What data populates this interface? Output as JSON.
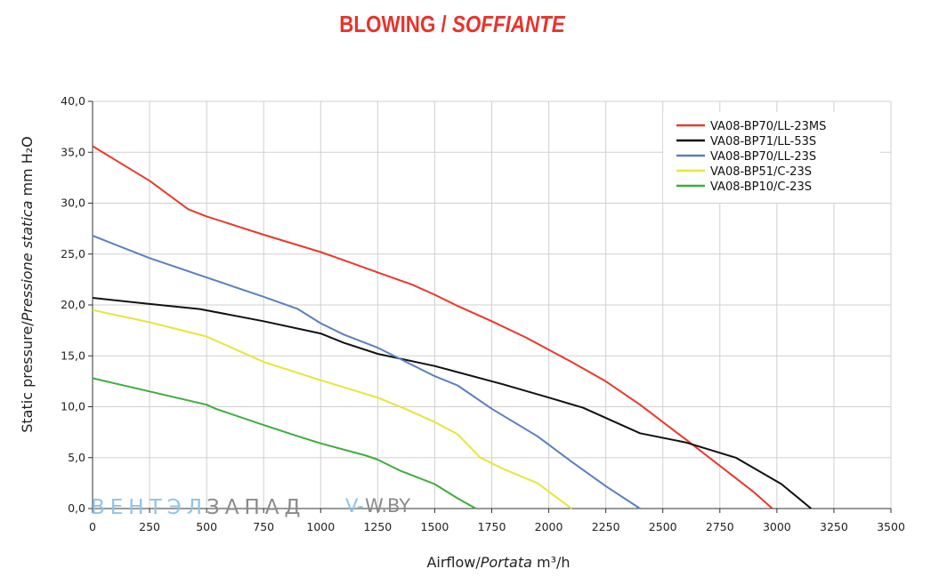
{
  "title": {
    "main": "BLOWING / ",
    "italic": "SOFFIANTE"
  },
  "watermark": {
    "part1": "ВЕНТЭЛ",
    "part2": "ЗАПАД",
    "part3": "V-",
    "part4": "W.BY"
  },
  "colors": {
    "title": "#e8332a",
    "grid": "#d0d0d0",
    "axis": "#333333"
  },
  "chart_data": {
    "type": "line",
    "xlabel": "Airflow / Portata m³/h",
    "xlabel_parts": {
      "en": "Airflow",
      "sep": "/",
      "it": "Portata",
      "unit": " m³/h"
    },
    "ylabel": "Static pressure / Pressione statica mm H₂O",
    "ylabel_parts": {
      "en": "Static pressure",
      "sep": "/",
      "it": "Pressione statica",
      "unit": " mm  H₂O"
    },
    "xlim": [
      0,
      3500
    ],
    "ylim": [
      0,
      40
    ],
    "x_ticks": [
      "0",
      "250",
      "500",
      "750",
      "1000",
      "1250",
      "1500",
      "1750",
      "2000",
      "2250",
      "2500",
      "2750",
      "3000",
      "3250",
      "3500"
    ],
    "y_ticks": [
      "0,0",
      "5,0",
      "10,0",
      "15,0",
      "20,0",
      "25,0",
      "30,0",
      "35,0",
      "40,0"
    ],
    "grid": true,
    "legend_position": "top-right",
    "series": [
      {
        "name": "VA08-BP70/LL-23MS",
        "color": "#e83a2a",
        "x": [
          0,
          250,
          420,
          500,
          750,
          1000,
          1100,
          1250,
          1400,
          1500,
          1600,
          1750,
          1900,
          2050,
          2100,
          2250,
          2400,
          2500,
          2600,
          2750,
          2900,
          2980
        ],
        "y": [
          35.6,
          32.2,
          29.4,
          28.7,
          26.9,
          25.2,
          24.4,
          23.2,
          22.0,
          21.0,
          19.9,
          18.4,
          16.8,
          15.0,
          14.4,
          12.5,
          10.2,
          8.5,
          6.8,
          4.2,
          1.6,
          0.0
        ]
      },
      {
        "name": "VA08-BP71/LL-53S",
        "color": "#111111",
        "x": [
          0,
          250,
          470,
          750,
          1000,
          1100,
          1250,
          1500,
          1800,
          2000,
          2150,
          2400,
          2600,
          2820,
          3020,
          3150
        ],
        "y": [
          20.7,
          20.1,
          19.6,
          18.4,
          17.2,
          16.3,
          15.2,
          14.0,
          12.2,
          10.9,
          9.9,
          7.4,
          6.5,
          5.0,
          2.4,
          0.0
        ]
      },
      {
        "name": "VA08-BP70/LL-23S",
        "color": "#5b7fc0",
        "x": [
          0,
          250,
          500,
          750,
          900,
          1000,
          1100,
          1250,
          1500,
          1600,
          1750,
          1950,
          2100,
          2250,
          2400
        ],
        "y": [
          26.8,
          24.6,
          22.7,
          20.8,
          19.6,
          18.2,
          17.1,
          15.8,
          13.0,
          12.1,
          9.8,
          7.1,
          4.6,
          2.2,
          0.0
        ]
      },
      {
        "name": "VA08-BP51/C-23S",
        "color": "#e6e63a",
        "x": [
          0,
          250,
          500,
          750,
          1000,
          1250,
          1370,
          1500,
          1600,
          1700,
          1800,
          1950,
          2100
        ],
        "y": [
          19.5,
          18.3,
          16.9,
          14.4,
          12.6,
          10.9,
          9.8,
          8.5,
          7.3,
          5.0,
          3.9,
          2.5,
          0.0
        ]
      },
      {
        "name": "VA08-BP10/C-23S",
        "color": "#3cae3c",
        "x": [
          0,
          250,
          500,
          540,
          750,
          900,
          1000,
          1200,
          1250,
          1350,
          1500,
          1600,
          1680
        ],
        "y": [
          12.8,
          11.5,
          10.2,
          9.8,
          8.2,
          7.1,
          6.4,
          5.2,
          4.8,
          3.7,
          2.4,
          1.0,
          0.0
        ]
      }
    ]
  }
}
